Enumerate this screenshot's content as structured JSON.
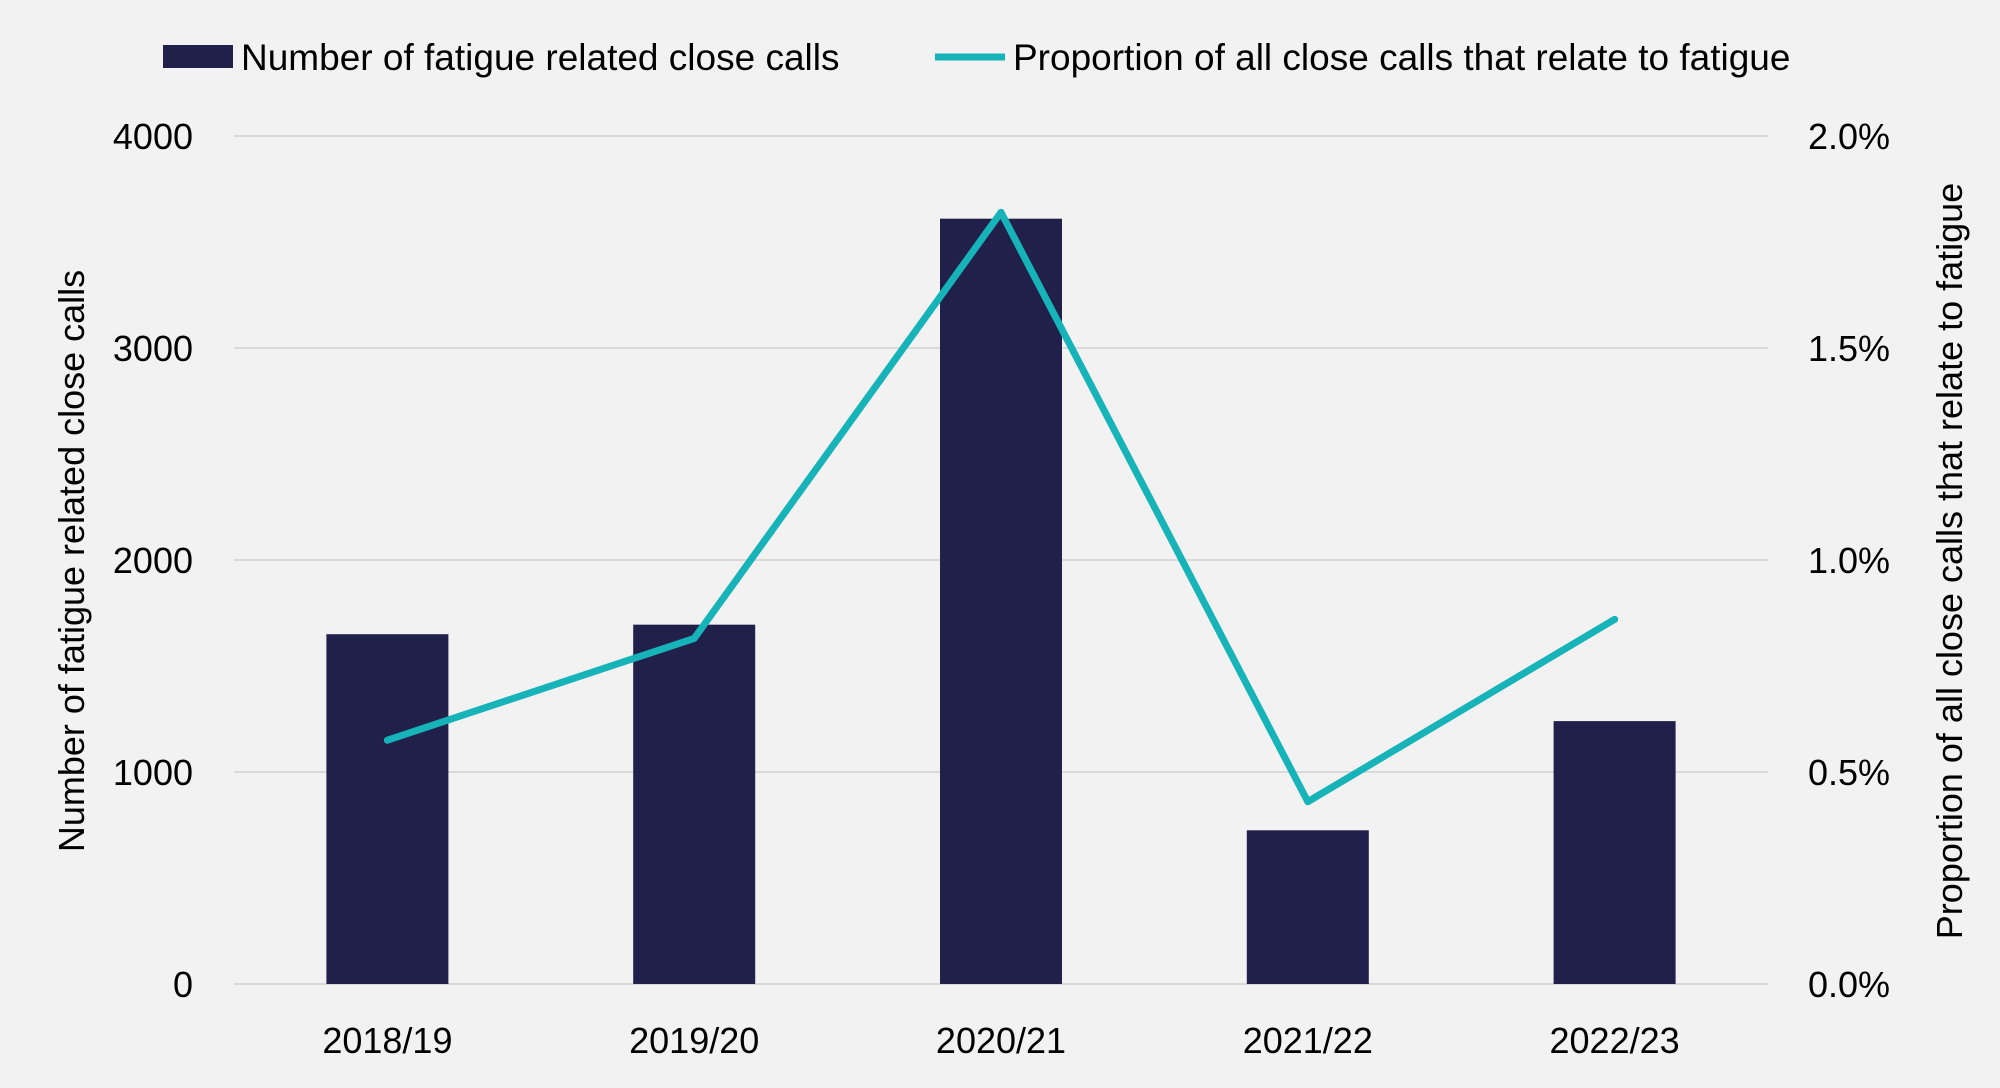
{
  "colors": {
    "background": "#f2f2f2",
    "bar": "#20204a",
    "line": "#16b3b9",
    "grid": "#d9d9d9",
    "text": "#000000"
  },
  "chart_data": {
    "type": "bar",
    "title": "",
    "categories": [
      "2018/19",
      "2019/20",
      "2020/21",
      "2021/22",
      "2022/23"
    ],
    "series": [
      {
        "name": "Number of fatigue related close calls",
        "type": "bar",
        "axis": "left",
        "values": [
          1650,
          1695,
          3610,
          725,
          1240
        ]
      },
      {
        "name": "Proportion of all close calls that relate to fatigue",
        "type": "line",
        "axis": "right",
        "values": [
          0.575,
          0.815,
          1.82,
          0.43,
          0.86
        ]
      }
    ],
    "ylabel": "Number of fatigue related close calls",
    "y2label": "Proportion of all close calls that relate to fatigue",
    "ylim": [
      0,
      4000
    ],
    "y2lim": [
      0,
      2.0
    ],
    "yticks": [
      "0",
      "1000",
      "2000",
      "3000",
      "4000"
    ],
    "y2ticks": [
      "0.0%",
      "0.5%",
      "1.0%",
      "1.5%",
      "2.0%"
    ],
    "grid": true,
    "legend_position": "top"
  }
}
